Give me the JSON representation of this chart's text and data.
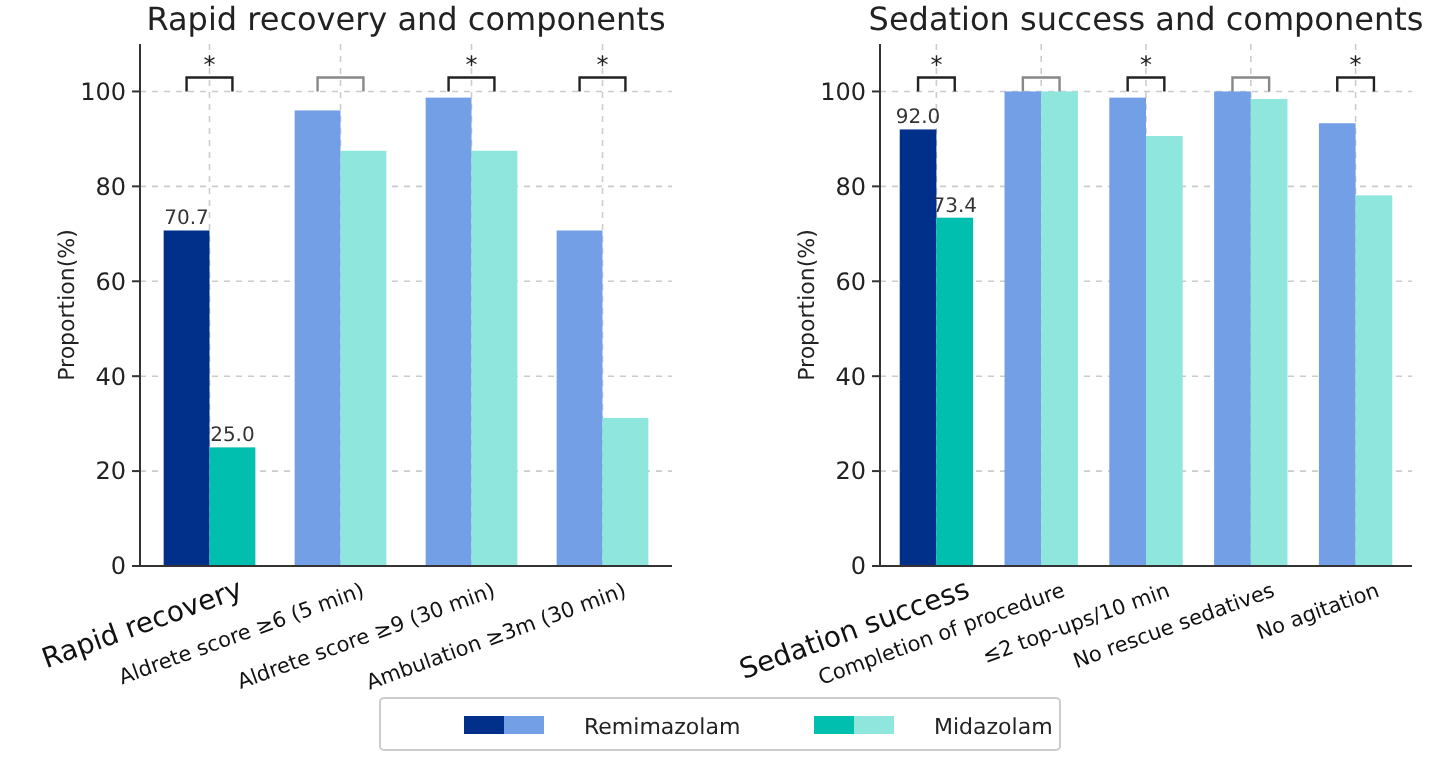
{
  "chart_data": [
    {
      "type": "bar",
      "title": "Rapid recovery and components",
      "ylabel": "Proportion(%)",
      "categories": [
        "Rapid recovery",
        "Aldrete score ≥6 (5 min)",
        "Aldrete score ≥9 (30 min)",
        "Ambulation ≥3m (30 min)"
      ],
      "ylim": [
        0,
        110
      ],
      "yticks": [
        0,
        20,
        40,
        60,
        80,
        100
      ],
      "grid": true,
      "series": [
        {
          "colors": [
            "#00308a",
            "#739fe6",
            "#739fe6",
            "#739fe6"
          ],
          "values": [
            70.7,
            96,
            98.7,
            70.7
          ],
          "value_labels": [
            "70.7",
            null,
            null,
            null
          ]
        },
        {
          "colors": [
            "#00bfae",
            "#8ee6dd",
            "#8ee6dd",
            "#8ee6dd"
          ],
          "values": [
            25.0,
            87.5,
            87.5,
            31.2
          ],
          "value_labels": [
            "25.0",
            null,
            null,
            null
          ]
        }
      ],
      "annotations": [
        "*",
        "*",
        "*"
      ]
    },
    {
      "type": "bar",
      "title": "Sedation success and components",
      "ylabel": "Proportion(%)",
      "categories": [
        "Sedation success",
        "Completion of procedure",
        "≤2 top-ups/10 min",
        "No rescue sedatives",
        "No agitation"
      ],
      "ylim": [
        0,
        110
      ],
      "yticks": [
        0,
        20,
        40,
        60,
        80,
        100
      ],
      "grid": true,
      "legend": "bottom",
      "series": [
        {
          "name": "Remimazolam",
          "colors": [
            "#00308a",
            "#739fe6",
            "#739fe6",
            "#739fe6",
            "#739fe6"
          ],
          "values": [
            92.0,
            100,
            98.7,
            100,
            93.3
          ],
          "value_labels": [
            "92.0",
            null,
            null,
            null,
            null
          ]
        },
        {
          "name": "Midazolam",
          "colors": [
            "#00bfae",
            "#8ee6dd",
            "#8ee6dd",
            "#8ee6dd",
            "#8ee6dd"
          ],
          "values": [
            73.4,
            100,
            90.6,
            98.4,
            78.1
          ],
          "value_labels": [
            "73.4",
            null,
            null,
            null,
            null
          ]
        }
      ],
      "annotations": [
        "*",
        "*",
        "*"
      ]
    }
  ]
}
